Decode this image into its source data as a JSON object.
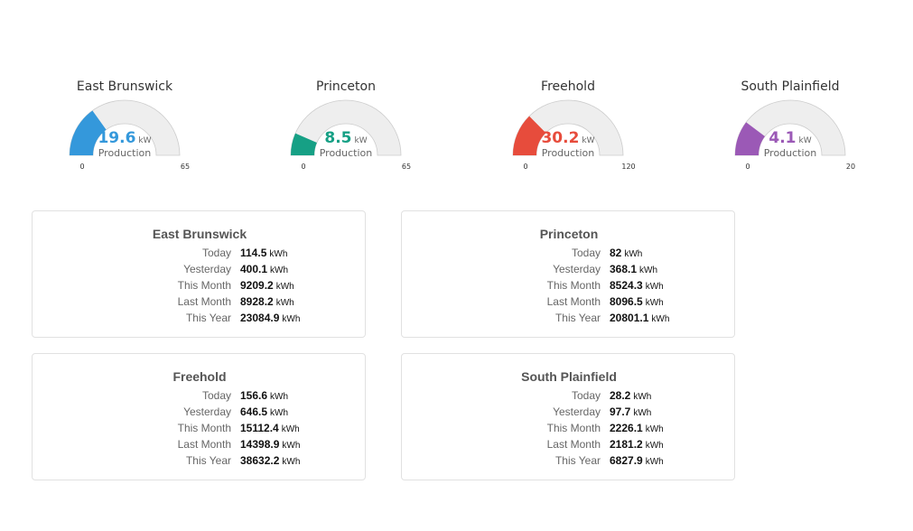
{
  "gauges": [
    {
      "title": "East Brunswick",
      "value": 19.6,
      "value_text": "19.6",
      "unit": "kW",
      "label": "Production",
      "min": 0,
      "max": 65,
      "min_text": "0",
      "max_text": "65",
      "color": "#3498db"
    },
    {
      "title": "Princeton",
      "value": 8.5,
      "value_text": "8.5",
      "unit": "kW",
      "label": "Production",
      "min": 0,
      "max": 65,
      "min_text": "0",
      "max_text": "65",
      "color": "#16a085"
    },
    {
      "title": "Freehold",
      "value": 30.2,
      "value_text": "30.2",
      "unit": "kW",
      "label": "Production",
      "min": 0,
      "max": 120,
      "min_text": "0",
      "max_text": "120",
      "color": "#e74c3c"
    },
    {
      "title": "South Plainfield",
      "value": 4.1,
      "value_text": "4.1",
      "unit": "kW",
      "label": "Production",
      "min": 0,
      "max": 20,
      "min_text": "0",
      "max_text": "20",
      "color": "#9b59b6"
    }
  ],
  "cards": [
    {
      "title": "East Brunswick",
      "rows": [
        {
          "label": "Today",
          "value": "114.5",
          "unit": "kWh"
        },
        {
          "label": "Yesterday",
          "value": "400.1",
          "unit": "kWh"
        },
        {
          "label": "This Month",
          "value": "9209.2",
          "unit": "kWh"
        },
        {
          "label": "Last Month",
          "value": "8928.2",
          "unit": "kWh"
        },
        {
          "label": "This Year",
          "value": "23084.9",
          "unit": "kWh"
        }
      ]
    },
    {
      "title": "Princeton",
      "rows": [
        {
          "label": "Today",
          "value": "82",
          "unit": "kWh"
        },
        {
          "label": "Yesterday",
          "value": "368.1",
          "unit": "kWh"
        },
        {
          "label": "This Month",
          "value": "8524.3",
          "unit": "kWh"
        },
        {
          "label": "Last Month",
          "value": "8096.5",
          "unit": "kWh"
        },
        {
          "label": "This Year",
          "value": "20801.1",
          "unit": "kWh"
        }
      ]
    },
    {
      "title": "Freehold",
      "rows": [
        {
          "label": "Today",
          "value": "156.6",
          "unit": "kWh"
        },
        {
          "label": "Yesterday",
          "value": "646.5",
          "unit": "kWh"
        },
        {
          "label": "This Month",
          "value": "15112.4",
          "unit": "kWh"
        },
        {
          "label": "Last Month",
          "value": "14398.9",
          "unit": "kWh"
        },
        {
          "label": "This Year",
          "value": "38632.2",
          "unit": "kWh"
        }
      ]
    },
    {
      "title": "South Plainfield",
      "rows": [
        {
          "label": "Today",
          "value": "28.2",
          "unit": "kWh"
        },
        {
          "label": "Yesterday",
          "value": "97.7",
          "unit": "kWh"
        },
        {
          "label": "This Month",
          "value": "2226.1",
          "unit": "kWh"
        },
        {
          "label": "Last Month",
          "value": "2181.2",
          "unit": "kWh"
        },
        {
          "label": "This Year",
          "value": "6827.9",
          "unit": "kWh"
        }
      ]
    }
  ]
}
